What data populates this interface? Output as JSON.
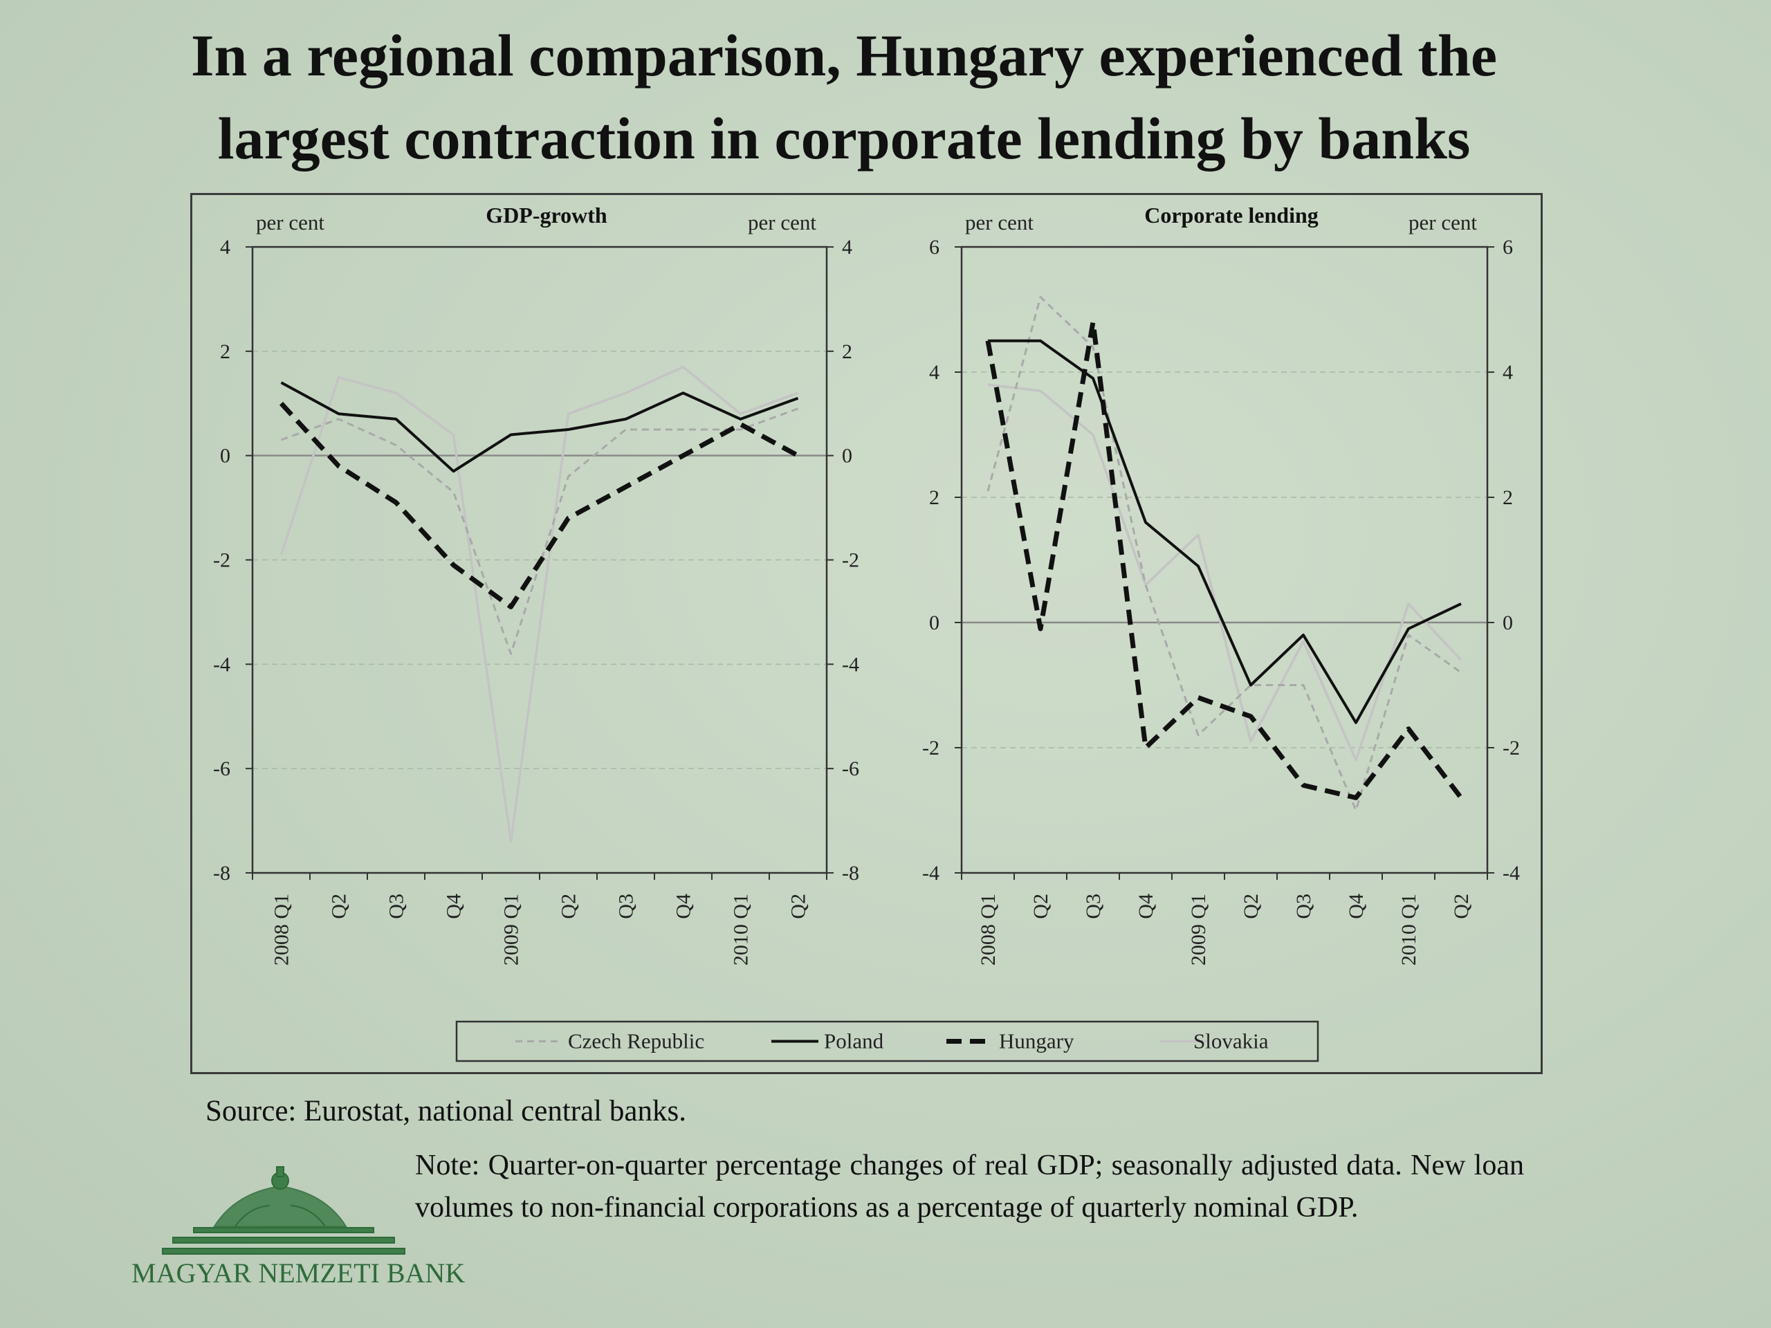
{
  "page": {
    "title_line1": "In a regional comparison, Hungary experienced the",
    "title_line2": "largest contraction in corporate lending by banks",
    "source": "Source: Eurostat, national central banks.",
    "note": "Note: Quarter-on-quarter percentage changes of real GDP; seasonally adjusted data. New loan volumes to non-financial corporations as a percentage of quarterly nominal GDP.",
    "logo_text": "MAGYAR NEMZETI BANK",
    "colors": {
      "background": "#c6d5c2",
      "logo_green": "#2e6b3a"
    }
  },
  "chart_data": [
    {
      "type": "line",
      "title": "GDP-growth",
      "ylabel_left": "per cent",
      "ylabel_right": "per cent",
      "ylim": [
        -8,
        4
      ],
      "yticks": [
        -8,
        -6,
        -4,
        -2,
        0,
        2,
        4
      ],
      "categories": [
        "2008 Q1",
        "Q2",
        "Q3",
        "Q4",
        "2009 Q1",
        "Q2",
        "Q3",
        "Q4",
        "2010 Q1",
        "Q2"
      ],
      "series": [
        {
          "name": "Czech Republic",
          "values": [
            0.3,
            0.7,
            0.2,
            -0.7,
            -3.8,
            -0.4,
            0.5,
            0.5,
            0.5,
            0.9
          ]
        },
        {
          "name": "Poland",
          "values": [
            1.4,
            0.8,
            0.7,
            -0.3,
            0.4,
            0.5,
            0.7,
            1.2,
            0.7,
            1.1
          ]
        },
        {
          "name": "Hungary",
          "values": [
            1.0,
            -0.2,
            -0.9,
            -2.1,
            -2.9,
            -1.2,
            -0.6,
            0.0,
            0.6,
            0.0
          ]
        },
        {
          "name": "Slovakia",
          "values": [
            -1.9,
            1.5,
            1.2,
            0.4,
            -7.4,
            0.8,
            1.2,
            1.7,
            0.8,
            1.2
          ]
        }
      ]
    },
    {
      "type": "line",
      "title": "Corporate lending",
      "ylabel_left": "per cent",
      "ylabel_right": "per cent",
      "ylim": [
        -4,
        6
      ],
      "yticks": [
        -4,
        -2,
        0,
        2,
        4,
        6
      ],
      "categories": [
        "2008 Q1",
        "Q2",
        "Q3",
        "Q4",
        "2009 Q1",
        "Q2",
        "Q3",
        "Q4",
        "2010 Q1",
        "Q2"
      ],
      "series": [
        {
          "name": "Czech Republic",
          "values": [
            2.1,
            5.2,
            4.4,
            0.6,
            -1.8,
            -1.0,
            -1.0,
            -3.0,
            -0.2,
            -0.8
          ]
        },
        {
          "name": "Poland",
          "values": [
            4.5,
            4.5,
            3.9,
            1.6,
            0.9,
            -1.0,
            -0.2,
            -1.6,
            -0.1,
            0.3
          ]
        },
        {
          "name": "Hungary",
          "values": [
            4.5,
            -0.1,
            4.8,
            -2.0,
            -1.2,
            -1.5,
            -2.6,
            -2.8,
            -1.7,
            -2.8
          ]
        },
        {
          "name": "Slovakia",
          "values": [
            3.8,
            3.7,
            3.0,
            0.6,
            1.4,
            -1.9,
            -0.3,
            -2.2,
            0.3,
            -0.6
          ]
        }
      ]
    }
  ],
  "legend": {
    "placement": "bottom",
    "items": [
      {
        "name": "Czech Republic",
        "style": "dashed-light",
        "color": "#a9a9a9"
      },
      {
        "name": "Poland",
        "style": "solid-dark",
        "color": "#111111"
      },
      {
        "name": "Hungary",
        "style": "dashed-bold",
        "color": "#111111"
      },
      {
        "name": "Slovakia",
        "style": "solid-light",
        "color": "#c0c0c0"
      }
    ]
  }
}
